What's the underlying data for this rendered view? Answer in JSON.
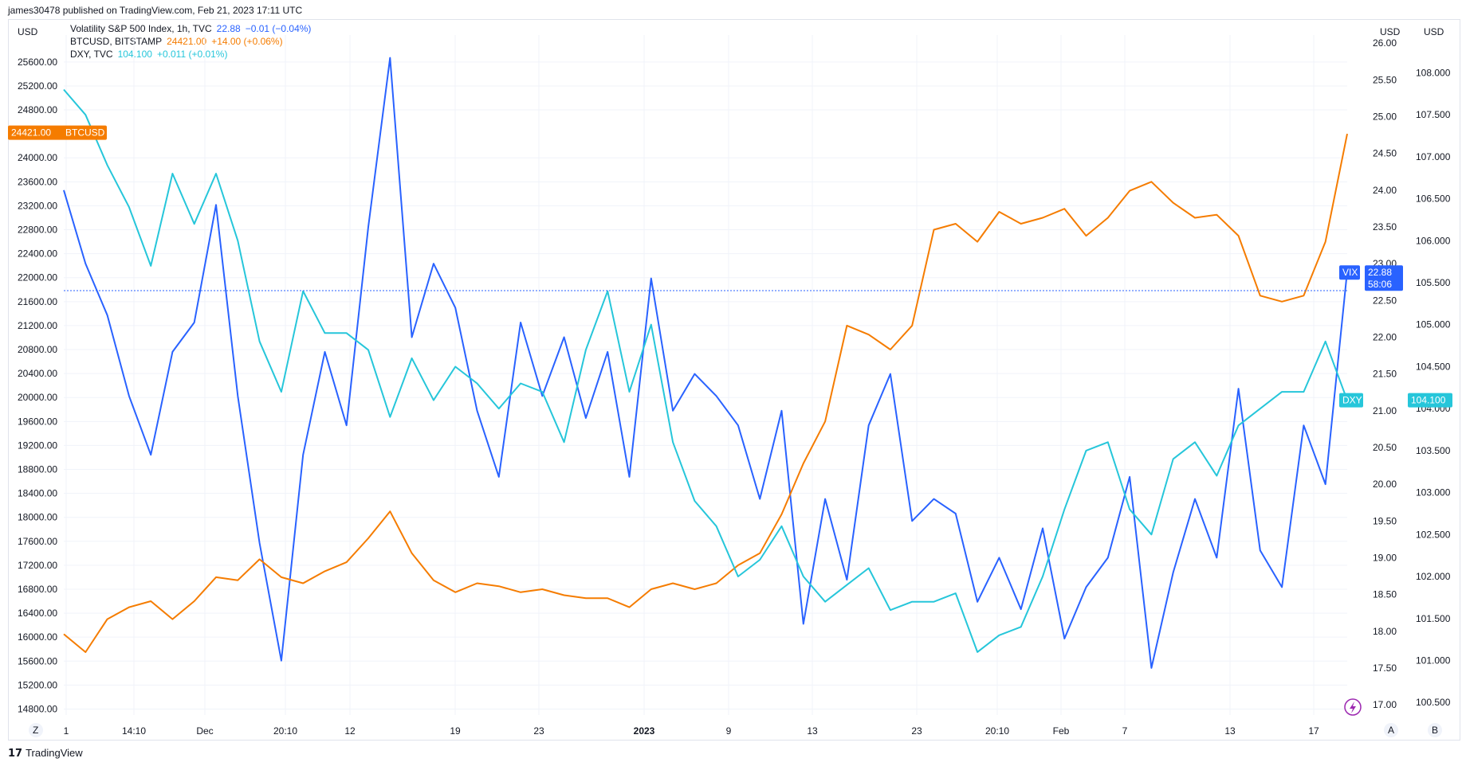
{
  "header": {
    "publisher": "james30478 published on TradingView.com, Feb 21, 2023 17:11 UTC"
  },
  "legend": [
    {
      "name": "Volatility S&P 500 Index, 1h, TVC",
      "value": "22.88",
      "change": "−0.01 (−0.04%)",
      "color": "#2962ff"
    },
    {
      "name": "BTCUSD, BITSTAMP",
      "value": "24421.00",
      "change": "+14.00 (+0.06%)",
      "color": "#f57c00"
    },
    {
      "name": "DXY, TVC",
      "value": "104.100",
      "change": "+0.011 (+0.01%)",
      "color": "#26c6da"
    }
  ],
  "footer": {
    "logo_mark": "17",
    "logo_text": "TradingView"
  },
  "axis_buttons": {
    "left": "Z",
    "auto": "A",
    "blank": "B"
  },
  "chart_data": {
    "type": "line",
    "x_ticks": [
      "1",
      "14:10",
      "Dec",
      "20:10",
      "12",
      "19",
      "23",
      "2023",
      "9",
      "13",
      "23",
      "20:10",
      "Feb",
      "7",
      "13",
      "17"
    ],
    "left_axis": {
      "label": "USD",
      "ticks": [
        "25600.00",
        "25200.00",
        "24800.00",
        "24000.00",
        "23600.00",
        "23200.00",
        "22800.00",
        "22400.00",
        "22000.00",
        "21600.00",
        "21200.00",
        "20800.00",
        "20400.00",
        "20000.00",
        "19600.00",
        "19200.00",
        "18800.00",
        "18400.00",
        "18000.00",
        "17600.00",
        "17200.00",
        "16800.00",
        "16400.00",
        "16000.00",
        "15600.00",
        "15200.00",
        "14800.00"
      ],
      "range": [
        14700,
        26050
      ]
    },
    "right_axis_vix": {
      "label": "USD",
      "ticks": [
        "26.00",
        "25.50",
        "25.00",
        "24.50",
        "24.00",
        "23.50",
        "23.00",
        "22.50",
        "22.00",
        "21.50",
        "21.00",
        "20.50",
        "20.00",
        "19.50",
        "19.00",
        "18.50",
        "18.00",
        "17.50",
        "17.00"
      ],
      "range": [
        16.86,
        26.11
      ]
    },
    "right_axis_dxy": {
      "label": "USD",
      "ticks": [
        "108.000",
        "107.500",
        "107.000",
        "106.500",
        "106.000",
        "105.500",
        "105.000",
        "104.500",
        "104.000",
        "103.500",
        "103.000",
        "102.500",
        "102.000",
        "101.500",
        "101.000",
        "100.500"
      ],
      "range": [
        100.35,
        108.45
      ]
    },
    "x_count": 60,
    "series": [
      {
        "name": "Volatility S&P 500 Index",
        "axis": "vix",
        "color": "#2962ff",
        "values": [
          24.0,
          23.0,
          22.3,
          21.2,
          20.4,
          21.8,
          22.2,
          23.8,
          21.2,
          19.2,
          17.6,
          20.4,
          21.8,
          20.8,
          23.5,
          25.8,
          22.0,
          23.0,
          22.4,
          21.0,
          20.1,
          22.2,
          21.2,
          22.0,
          20.9,
          21.8,
          20.1,
          22.8,
          21.0,
          21.5,
          21.2,
          20.8,
          19.8,
          21.0,
          18.1,
          19.8,
          18.7,
          20.8,
          21.5,
          19.5,
          19.8,
          19.6,
          18.4,
          19.0,
          18.3,
          19.4,
          17.9,
          18.6,
          19.0,
          20.1,
          17.5,
          18.8,
          19.8,
          19.0,
          21.3,
          19.1,
          18.6,
          20.8,
          20.0,
          22.9
        ]
      },
      {
        "name": "BTCUSD",
        "axis": "btc",
        "color": "#f57c00",
        "values": [
          16050,
          15750,
          16300,
          16500,
          16600,
          16300,
          16600,
          17000,
          16950,
          17300,
          17000,
          16900,
          17100,
          17250,
          17650,
          18100,
          17400,
          16950,
          16750,
          16900,
          16850,
          16750,
          16800,
          16700,
          16650,
          16650,
          16500,
          16800,
          16900,
          16800,
          16900,
          17200,
          17400,
          18050,
          18900,
          19600,
          21200,
          21050,
          20800,
          21200,
          22800,
          22900,
          22600,
          23100,
          22900,
          23000,
          23150,
          22700,
          23000,
          23450,
          23600,
          23250,
          23000,
          23050,
          22700,
          21700,
          21600,
          21700,
          22600,
          24400
        ]
      },
      {
        "name": "DXY",
        "axis": "dxy",
        "color": "#26c6da",
        "values": [
          107.8,
          107.5,
          106.9,
          106.4,
          105.7,
          106.8,
          106.2,
          106.8,
          106.0,
          104.8,
          104.2,
          105.4,
          104.9,
          104.9,
          104.7,
          103.9,
          104.6,
          104.1,
          104.5,
          104.3,
          104.0,
          104.3,
          104.2,
          103.6,
          104.7,
          105.4,
          104.2,
          105.0,
          103.6,
          102.9,
          102.6,
          102.0,
          102.2,
          102.6,
          102.0,
          101.7,
          101.9,
          102.1,
          101.6,
          101.7,
          101.7,
          101.8,
          101.1,
          101.3,
          101.4,
          102.0,
          102.8,
          103.5,
          103.6,
          102.8,
          102.5,
          103.4,
          103.6,
          103.2,
          103.8,
          104.0,
          104.2,
          104.2,
          104.8,
          104.1
        ]
      }
    ],
    "pills": [
      {
        "label": "24421.00",
        "tag": "BTCUSD",
        "color": "#f57c00"
      },
      {
        "label": "22.88",
        "tag": "VIX",
        "extra": "58:06",
        "color": "#2962ff"
      },
      {
        "label": "104.100",
        "tag": "DXY",
        "color": "#26c6da"
      }
    ]
  }
}
